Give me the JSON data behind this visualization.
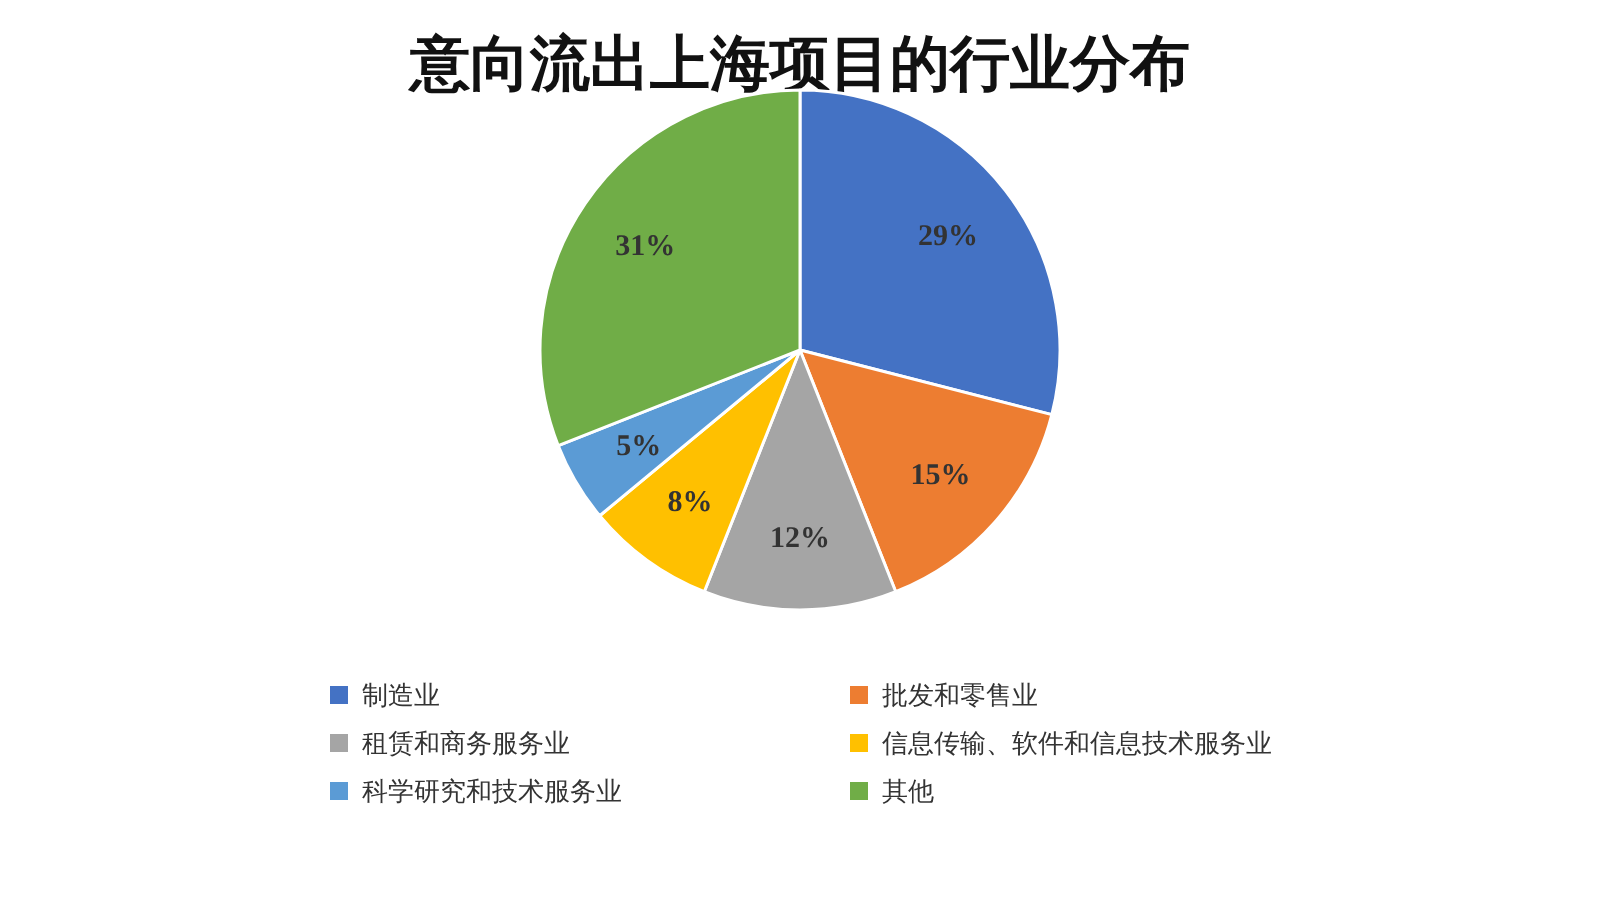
{
  "chart_data": {
    "type": "pie",
    "title": "意向流出上海项目的行业分布",
    "categories": [
      "制造业",
      "批发和零售业",
      "租赁和商务服务业",
      "信息传输、软件和信息技术服务业",
      "科学研究和技术服务业",
      "其他"
    ],
    "values": [
      29,
      15,
      12,
      8,
      5,
      31
    ],
    "colors": [
      "#4472c4",
      "#ed7d31",
      "#a5a5a5",
      "#ffc000",
      "#5b9bd5",
      "#70ad47"
    ],
    "value_labels": [
      "29%",
      "15%",
      "12%",
      "8%",
      "5%",
      "31%"
    ],
    "legend": "bottom"
  }
}
